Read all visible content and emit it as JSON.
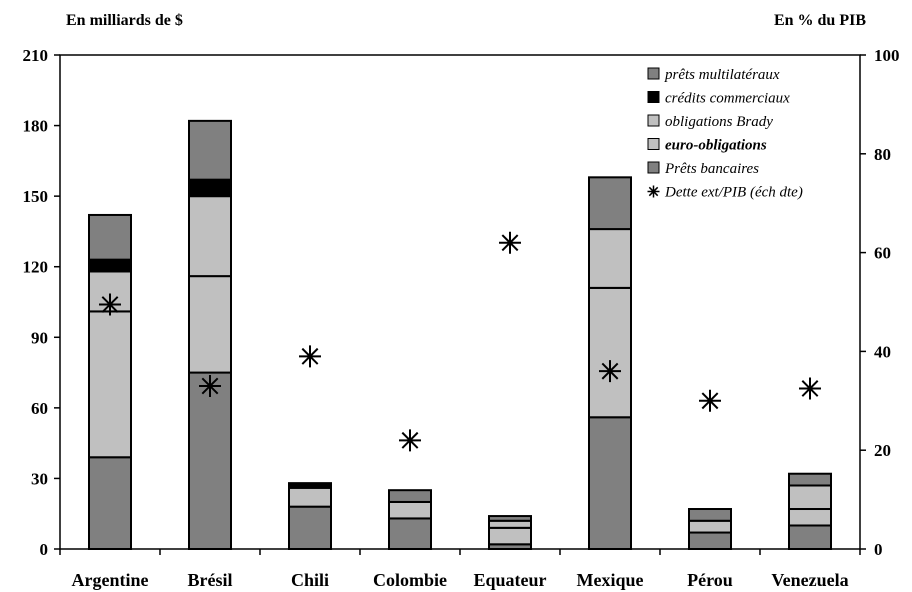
{
  "left_unit": "En milliards de $",
  "right_unit": "En % du PIB",
  "chart_data": {
    "type": "bar",
    "stacked": true,
    "categories": [
      "Argentine",
      "Brésil",
      "Chili",
      "Colombie",
      "Equateur",
      "Mexique",
      "Pérou",
      "Venezuela"
    ],
    "ylim": [
      0,
      210
    ],
    "yticks": [
      0,
      30,
      60,
      90,
      120,
      150,
      180,
      210
    ],
    "y2lim": [
      0,
      100
    ],
    "y2ticks": [
      0,
      20,
      40,
      60,
      80,
      100
    ],
    "grid": false,
    "legend_position": "top-right",
    "series": [
      {
        "name": "Prêts bancaires",
        "color": "#808080",
        "values": [
          39,
          75,
          18,
          13,
          2,
          56,
          7,
          10
        ]
      },
      {
        "name": "euro-obligations",
        "color": "#c0c0c0",
        "values": [
          62,
          41,
          0,
          7,
          7,
          55,
          5,
          7
        ]
      },
      {
        "name": "obligations Brady",
        "color": "#c0c0c0",
        "values": [
          17,
          34,
          8,
          0,
          3,
          25,
          0,
          10
        ]
      },
      {
        "name": "crédits commerciaux",
        "color": "#000000",
        "values": [
          5,
          7,
          2,
          0,
          0,
          0,
          0,
          0
        ]
      },
      {
        "name": "prêts multilatéraux",
        "color": "#808080",
        "values": [
          19,
          25,
          0,
          5,
          2,
          22,
          5,
          5
        ]
      }
    ],
    "legend_order": [
      "prêts multilatéraux",
      "crédits commerciaux",
      "obligations Brady",
      "euro-obligations",
      "Prêts bancaires",
      "Dette ext/PIB (éch dte)"
    ],
    "legend_bold": [
      "euro-obligations"
    ],
    "markers": {
      "name": "Dette ext/PIB (éch dte)",
      "axis": "right",
      "symbol": "star",
      "values": [
        49.5,
        33,
        39,
        22,
        62,
        36,
        30,
        32.5
      ]
    }
  }
}
